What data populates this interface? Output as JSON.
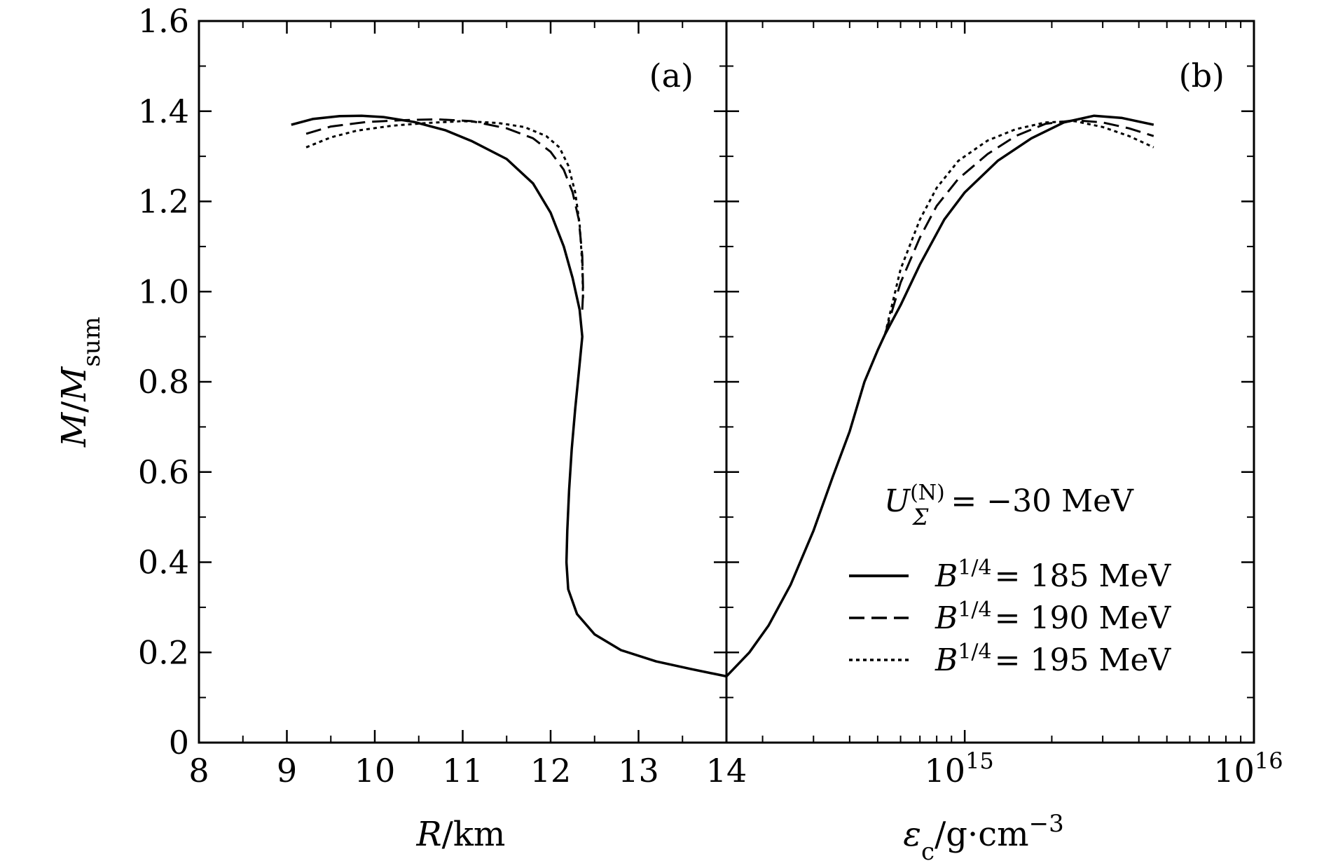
{
  "chart_data": [
    {
      "panel_label": "(a)",
      "type": "line",
      "xlabel": "R/km",
      "ylabel": "M/M_sum",
      "xlim": [
        8,
        14
      ],
      "ylim": [
        0,
        1.6
      ],
      "x_ticks": [
        "8",
        "9",
        "10",
        "11",
        "12",
        "13",
        "14"
      ],
      "y_ticks": [
        "0",
        "0.2",
        "0.4",
        "0.6",
        "0.8",
        "1.0",
        "1.2",
        "1.4",
        "1.6"
      ],
      "series": [
        {
          "name": "B^{1/4} = 185 MeV",
          "style": "solid",
          "points": [
            [
              9.05,
              1.37
            ],
            [
              9.3,
              1.383
            ],
            [
              9.6,
              1.389
            ],
            [
              9.85,
              1.39
            ],
            [
              10.1,
              1.387
            ],
            [
              10.45,
              1.376
            ],
            [
              10.8,
              1.358
            ],
            [
              11.1,
              1.334
            ],
            [
              11.5,
              1.294
            ],
            [
              11.8,
              1.24
            ],
            [
              12.0,
              1.175
            ],
            [
              12.15,
              1.1
            ],
            [
              12.25,
              1.03
            ],
            [
              12.33,
              0.96
            ],
            [
              12.36,
              0.9
            ],
            [
              12.32,
              0.82
            ],
            [
              12.28,
              0.74
            ],
            [
              12.24,
              0.65
            ],
            [
              12.21,
              0.56
            ],
            [
              12.19,
              0.47
            ],
            [
              12.18,
              0.4
            ],
            [
              12.2,
              0.34
            ],
            [
              12.3,
              0.285
            ],
            [
              12.5,
              0.24
            ],
            [
              12.8,
              0.205
            ],
            [
              13.2,
              0.18
            ],
            [
              13.6,
              0.163
            ],
            [
              14.0,
              0.147
            ]
          ]
        },
        {
          "name": "B^{1/4} = 190 MeV",
          "style": "dashed",
          "points": [
            [
              9.22,
              1.35
            ],
            [
              9.5,
              1.366
            ],
            [
              9.9,
              1.376
            ],
            [
              10.3,
              1.38
            ],
            [
              10.7,
              1.382
            ],
            [
              11.1,
              1.378
            ],
            [
              11.5,
              1.362
            ],
            [
              11.8,
              1.34
            ],
            [
              12.0,
              1.31
            ],
            [
              12.15,
              1.27
            ],
            [
              12.25,
              1.22
            ],
            [
              12.32,
              1.16
            ],
            [
              12.36,
              1.08
            ],
            [
              12.37,
              1.0
            ],
            [
              12.36,
              0.96
            ]
          ]
        },
        {
          "name": "B^{1/4} = 195 MeV",
          "style": "dotted",
          "points": [
            [
              9.22,
              1.32
            ],
            [
              9.5,
              1.342
            ],
            [
              9.8,
              1.357
            ],
            [
              10.2,
              1.368
            ],
            [
              10.6,
              1.374
            ],
            [
              11.0,
              1.378
            ],
            [
              11.4,
              1.374
            ],
            [
              11.7,
              1.365
            ],
            [
              11.95,
              1.345
            ],
            [
              12.1,
              1.32
            ],
            [
              12.2,
              1.28
            ],
            [
              12.28,
              1.22
            ],
            [
              12.33,
              1.15
            ],
            [
              12.36,
              1.06
            ],
            [
              12.37,
              0.98
            ]
          ]
        }
      ]
    },
    {
      "panel_label": "(b)",
      "type": "line",
      "xlabel": "εc/g·cm−3",
      "x_scale": "log",
      "xlim": [
        150000000000000.0,
        1e+16
      ],
      "ylim": [
        0,
        1.6
      ],
      "x_ticks": [
        {
          "value": 1000000000000000.0,
          "base": "10",
          "exp": "15"
        },
        {
          "value": 1e+16,
          "base": "10",
          "exp": "16"
        }
      ],
      "annotation": "U_Σ^(N) = −30 MeV",
      "legend_position": "lower-right",
      "series": [
        {
          "name": "B^{1/4} = 185 MeV",
          "style": "solid",
          "points": [
            [
              150000000000000.0,
              0.147
            ],
            [
              180000000000000.0,
              0.2
            ],
            [
              210000000000000.0,
              0.26
            ],
            [
              250000000000000.0,
              0.35
            ],
            [
              300000000000000.0,
              0.47
            ],
            [
              350000000000000.0,
              0.59
            ],
            [
              400000000000000.0,
              0.69
            ],
            [
              450000000000000.0,
              0.8
            ],
            [
              500000000000000.0,
              0.87
            ],
            [
              530000000000000.0,
              0.905
            ],
            [
              600000000000000.0,
              0.97
            ],
            [
              700000000000000.0,
              1.06
            ],
            [
              850000000000000.0,
              1.16
            ],
            [
              1000000000000000.0,
              1.22
            ],
            [
              1300000000000000.0,
              1.29
            ],
            [
              1700000000000000.0,
              1.34
            ],
            [
              2200000000000000.0,
              1.375
            ],
            [
              2800000000000000.0,
              1.39
            ],
            [
              3500000000000000.0,
              1.385
            ],
            [
              4500000000000000.0,
              1.37
            ]
          ]
        },
        {
          "name": "B^{1/4} = 190 MeV",
          "style": "dashed",
          "points": [
            [
              530000000000000.0,
              0.905
            ],
            [
              600000000000000.0,
              1.02
            ],
            [
              700000000000000.0,
              1.12
            ],
            [
              800000000000000.0,
              1.19
            ],
            [
              950000000000000.0,
              1.25
            ],
            [
              1200000000000000.0,
              1.305
            ],
            [
              1500000000000000.0,
              1.345
            ],
            [
              1900000000000000.0,
              1.372
            ],
            [
              2400000000000000.0,
              1.38
            ],
            [
              3000000000000000.0,
              1.375
            ],
            [
              3700000000000000.0,
              1.362
            ],
            [
              4500000000000000.0,
              1.345
            ]
          ]
        },
        {
          "name": "B^{1/4} = 195 MeV",
          "style": "dotted",
          "points": [
            [
              530000000000000.0,
              0.905
            ],
            [
              600000000000000.0,
              1.05
            ],
            [
              700000000000000.0,
              1.16
            ],
            [
              800000000000000.0,
              1.23
            ],
            [
              950000000000000.0,
              1.29
            ],
            [
              1200000000000000.0,
              1.335
            ],
            [
              1500000000000000.0,
              1.36
            ],
            [
              1900000000000000.0,
              1.375
            ],
            [
              2400000000000000.0,
              1.378
            ],
            [
              3000000000000000.0,
              1.365
            ],
            [
              3700000000000000.0,
              1.345
            ],
            [
              4500000000000000.0,
              1.32
            ]
          ]
        }
      ]
    }
  ]
}
